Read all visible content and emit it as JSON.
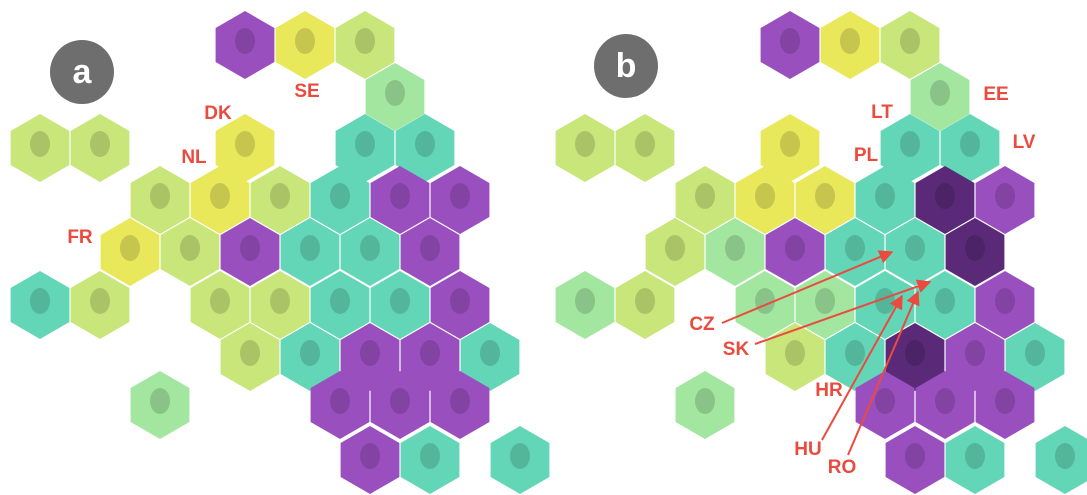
{
  "panels": [
    {
      "label": "a",
      "annotations": [
        "SE",
        "DK",
        "NL",
        "FR"
      ]
    },
    {
      "label": "b",
      "annotations": [
        "EE",
        "LT",
        "LV",
        "PL",
        "CZ",
        "SK",
        "HR",
        "HU",
        "RO"
      ]
    }
  ]
}
